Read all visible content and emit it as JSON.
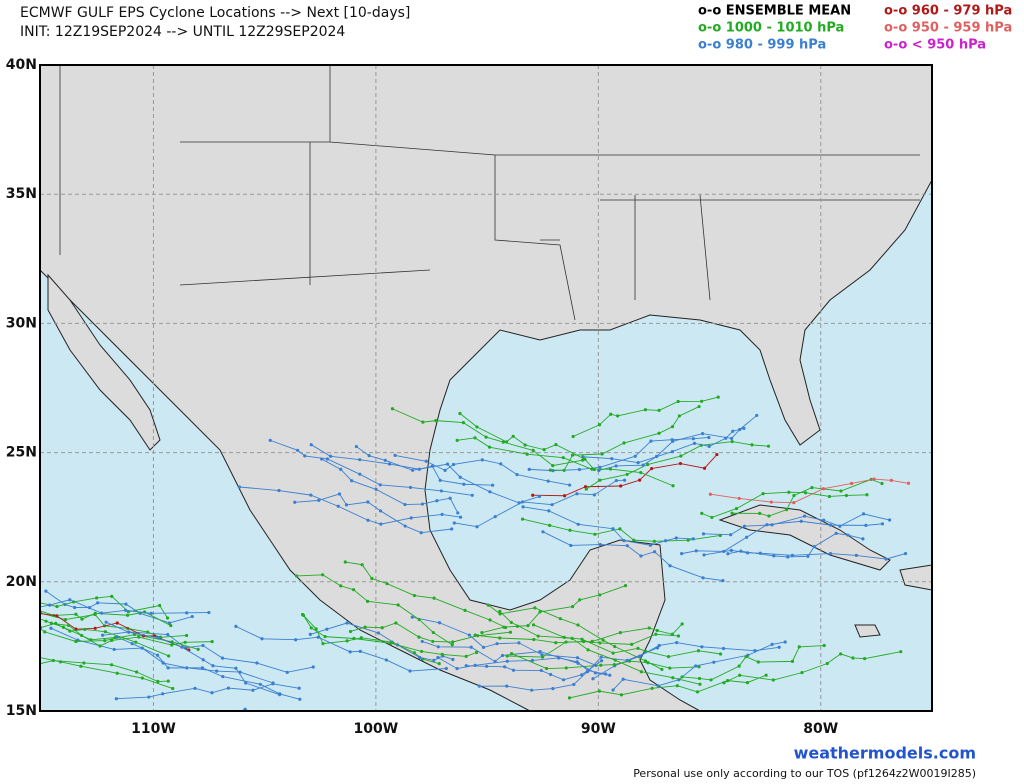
{
  "header": {
    "title": "ECMWF GULF EPS Cyclone Locations --> Next [10-days]",
    "subtitle": "INIT: 12Z19SEP2024 --> UNTIL 12Z29SEP2024"
  },
  "legend": [
    {
      "label": "o-o ENSEMBLE MEAN",
      "color": "#000000"
    },
    {
      "label": "o-o 1000 - 1010 hPa",
      "color": "#22aa22"
    },
    {
      "label": "o-o 980 - 999 hPa",
      "color": "#3a7fd0"
    },
    {
      "label": "o-o 960 - 979 hPa",
      "color": "#b01818"
    },
    {
      "label": "o-o 950 - 959 hPa",
      "color": "#e06060"
    },
    {
      "label": "o-o < 950 hPa",
      "color": "#cc22cc"
    }
  ],
  "map": {
    "lon_range": [
      -115.1,
      -75
    ],
    "lat_range": [
      15,
      40
    ],
    "lon_ticks": [
      {
        "value": -110,
        "label": "110W"
      },
      {
        "value": -100,
        "label": "100W"
      },
      {
        "value": -90,
        "label": "90W"
      },
      {
        "value": -80,
        "label": "80W"
      }
    ],
    "lat_ticks": [
      {
        "value": 15,
        "label": "15N"
      },
      {
        "value": 20,
        "label": "20N"
      },
      {
        "value": 25,
        "label": "25N"
      },
      {
        "value": 30,
        "label": "30N"
      },
      {
        "value": 35,
        "label": "35N"
      },
      {
        "value": 40,
        "label": "40N"
      }
    ]
  },
  "footer": {
    "brand": "weathermodels.com",
    "notice": "Personal use only according to our TOS (pf1264z2W0019I285)"
  }
}
